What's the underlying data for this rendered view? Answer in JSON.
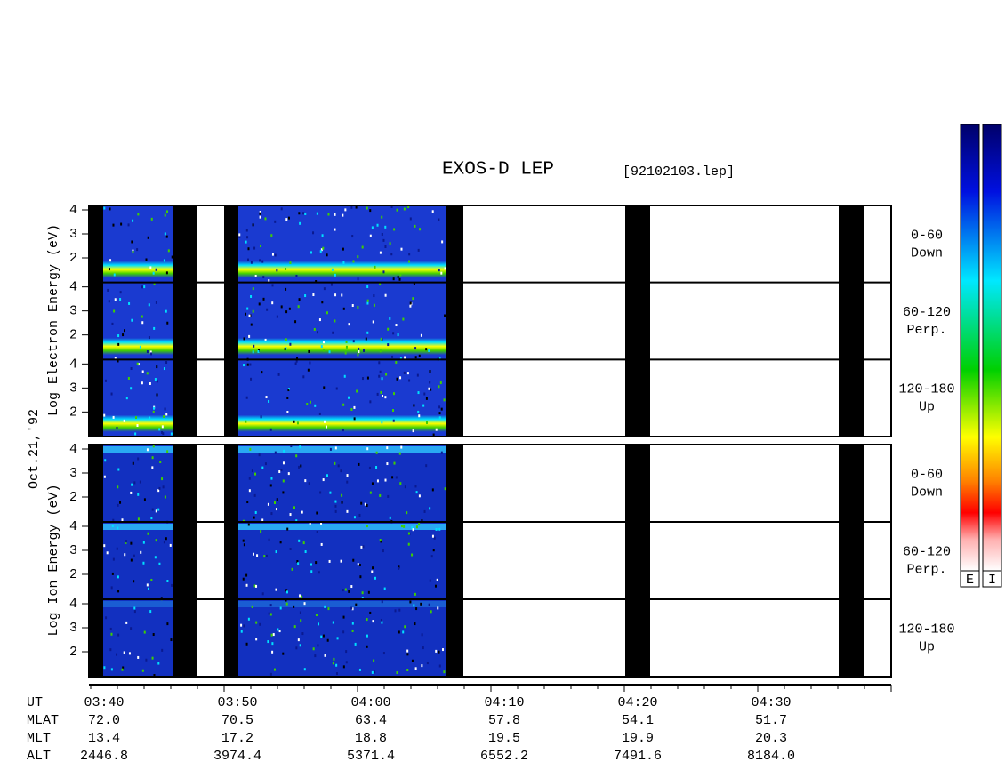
{
  "title": "EXOS-D LEP",
  "file": "[92102103.lep]",
  "date": "Oct.21,'92",
  "electron_label": "Log Electron Energy (eV)",
  "ion_label": "Log Ion Energy (eV)",
  "yticks": [
    "4",
    "3",
    "2"
  ],
  "channels": [
    {
      "range": "0-60",
      "dir": "Down"
    },
    {
      "range": "60-120",
      "dir": "Perp."
    },
    {
      "range": "120-180",
      "dir": "Up"
    }
  ],
  "colorbar_labels": [
    "E",
    "I"
  ],
  "rows": [
    {
      "name": "UT",
      "values": [
        "03:40",
        "03:50",
        "04:00",
        "04:10",
        "04:20",
        "04:30"
      ]
    },
    {
      "name": "MLAT",
      "values": [
        "72.0",
        "70.5",
        "63.4",
        "57.8",
        "54.1",
        "51.7"
      ]
    },
    {
      "name": "MLT",
      "values": [
        "13.4",
        "17.2",
        "18.8",
        "19.5",
        "19.9",
        "20.3"
      ]
    },
    {
      "name": "ALT",
      "values": [
        "2446.8",
        "3974.4",
        "5371.4",
        "6552.2",
        "7491.6",
        "8184.0"
      ]
    }
  ]
}
